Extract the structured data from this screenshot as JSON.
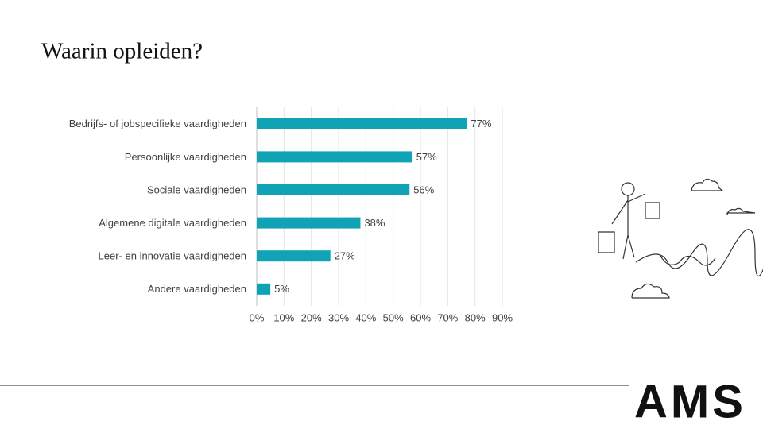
{
  "chart_data": {
    "type": "bar",
    "orientation": "horizontal",
    "title": "Waarin opleiden?",
    "categories": [
      "Bedrijfs- of jobspecifieke vaardigheden",
      "Persoonlijke vaardigheden",
      "Sociale vaardigheden",
      "Algemene digitale vaardigheden",
      "Leer- en innovatie vaardigheden",
      "Andere vaardigheden"
    ],
    "values": [
      77,
      57,
      56,
      38,
      27,
      5
    ],
    "value_labels": [
      "77%",
      "57%",
      "56%",
      "38%",
      "27%",
      "5%"
    ],
    "color": "#0fa3b5",
    "xlim": [
      0,
      90
    ],
    "xticks": [
      {
        "value": 0,
        "label": "0%"
      },
      {
        "value": 10,
        "label": "10%"
      },
      {
        "value": 20,
        "label": "20%"
      },
      {
        "value": 30,
        "label": "30%"
      },
      {
        "value": 40,
        "label": "40%"
      },
      {
        "value": 50,
        "label": "50%"
      },
      {
        "value": 60,
        "label": "60%"
      },
      {
        "value": 70,
        "label": "70%"
      },
      {
        "value": 80,
        "label": "80%"
      },
      {
        "value": 90,
        "label": "90%"
      }
    ],
    "grid": true
  },
  "logo": "AMS"
}
